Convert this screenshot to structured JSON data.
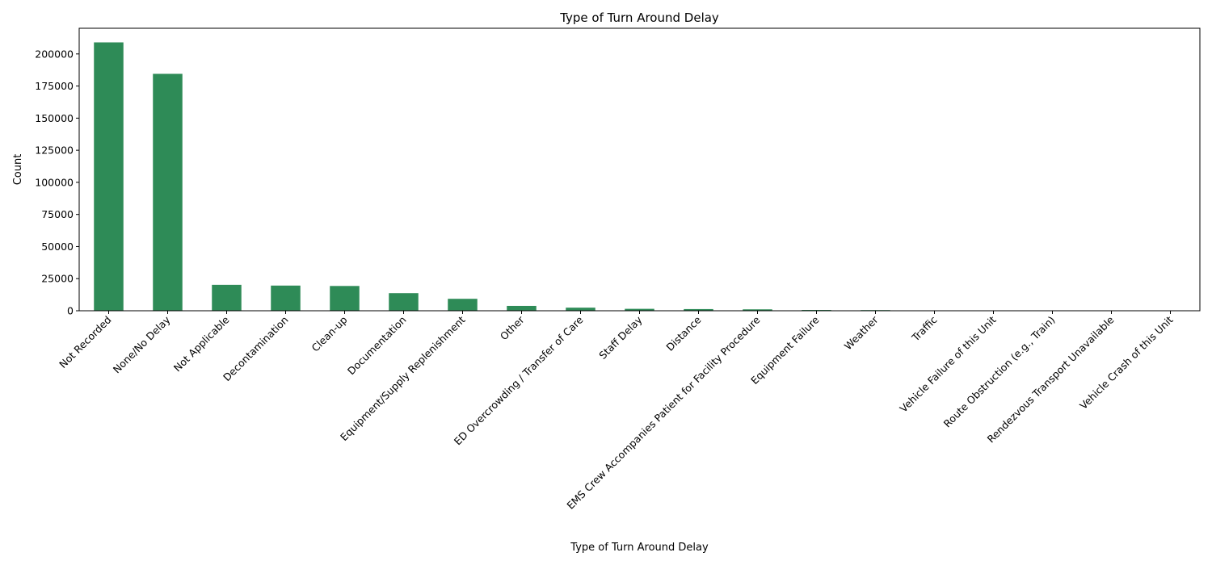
{
  "chart_data": {
    "type": "bar",
    "title": "Type of Turn Around Delay",
    "xlabel": "Type of Turn Around Delay",
    "ylabel": "Count",
    "ylim": [
      0,
      220000
    ],
    "yticks": [
      0,
      25000,
      50000,
      75000,
      100000,
      125000,
      150000,
      175000,
      200000
    ],
    "ytick_labels": [
      "0",
      "25000",
      "50000",
      "75000",
      "100000",
      "125000",
      "150000",
      "175000",
      "200000"
    ],
    "grid": false,
    "legend": "none",
    "bar_color": "#2e8b57",
    "categories": [
      "Not Recorded",
      "None/No Delay",
      "Not Applicable",
      "Decontamination",
      "Clean-up",
      "Documentation",
      "Equipment/Supply Replenishment",
      "Other",
      "ED Overcrowding / Transfer of Care",
      "Staff Delay",
      "Distance",
      "EMS Crew Accompanies Patient for Facility Procedure",
      "Equipment Failure",
      "Weather",
      "Traffic",
      "Vehicle Failure of this Unit",
      "Route Obstruction (e.g., Train)",
      "Rendezvous Transport Unavailable",
      "Vehicle Crash of this Unit"
    ],
    "values": [
      209000,
      184500,
      20200,
      19600,
      19300,
      13700,
      9300,
      3800,
      2400,
      1500,
      1300,
      1100,
      600,
      500,
      150,
      100,
      60,
      40,
      20
    ]
  }
}
